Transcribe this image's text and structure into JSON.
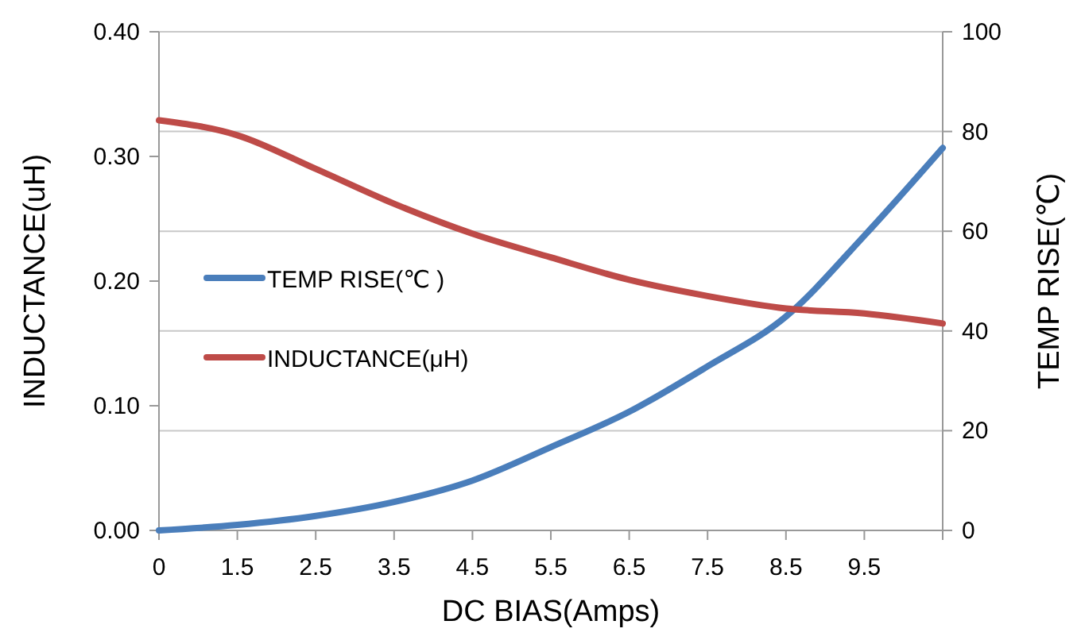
{
  "chart_data": {
    "type": "line",
    "xlabel": "DC  BIAS(Amps)",
    "ylabel": "INDUCTANCE(uH)",
    "y2label": "TEMP RISE(℃)",
    "categories": [
      "0",
      "1.5",
      "2.5",
      "3.5",
      "4.5",
      "5.5",
      "6.5",
      "7.5",
      "8.5",
      "9.5",
      null
    ],
    "series": [
      {
        "name": "TEMP RISE(℃ )",
        "color": "#4a7ebb",
        "axis": "y2",
        "values": [
          0,
          1.1,
          2.9,
          5.7,
          10.0,
          16.7,
          23.8,
          32.9,
          42.9,
          59.1,
          76.7
        ]
      },
      {
        "name": "INDUCTANCE(μH)",
        "color": "#be4b48",
        "values": [
          0.329,
          0.317,
          0.29,
          0.262,
          0.238,
          0.219,
          0.201,
          0.188,
          0.178,
          0.174,
          0.166
        ]
      }
    ],
    "ylim": [
      0,
      0.4
    ],
    "yticks": [
      {
        "value": 0,
        "label": "0.00"
      },
      {
        "value": 0.1,
        "label": "0.10"
      },
      {
        "value": 0.2,
        "label": "0.20"
      },
      {
        "value": 0.3,
        "label": "0.30"
      },
      {
        "value": 0.4,
        "label": "0.40"
      }
    ],
    "y2lim": [
      0,
      100
    ],
    "y2ticks": [
      0,
      20,
      40,
      60,
      80,
      100
    ],
    "grid": true,
    "legend": "left",
    "marker": "none",
    "line_style": "solid"
  }
}
